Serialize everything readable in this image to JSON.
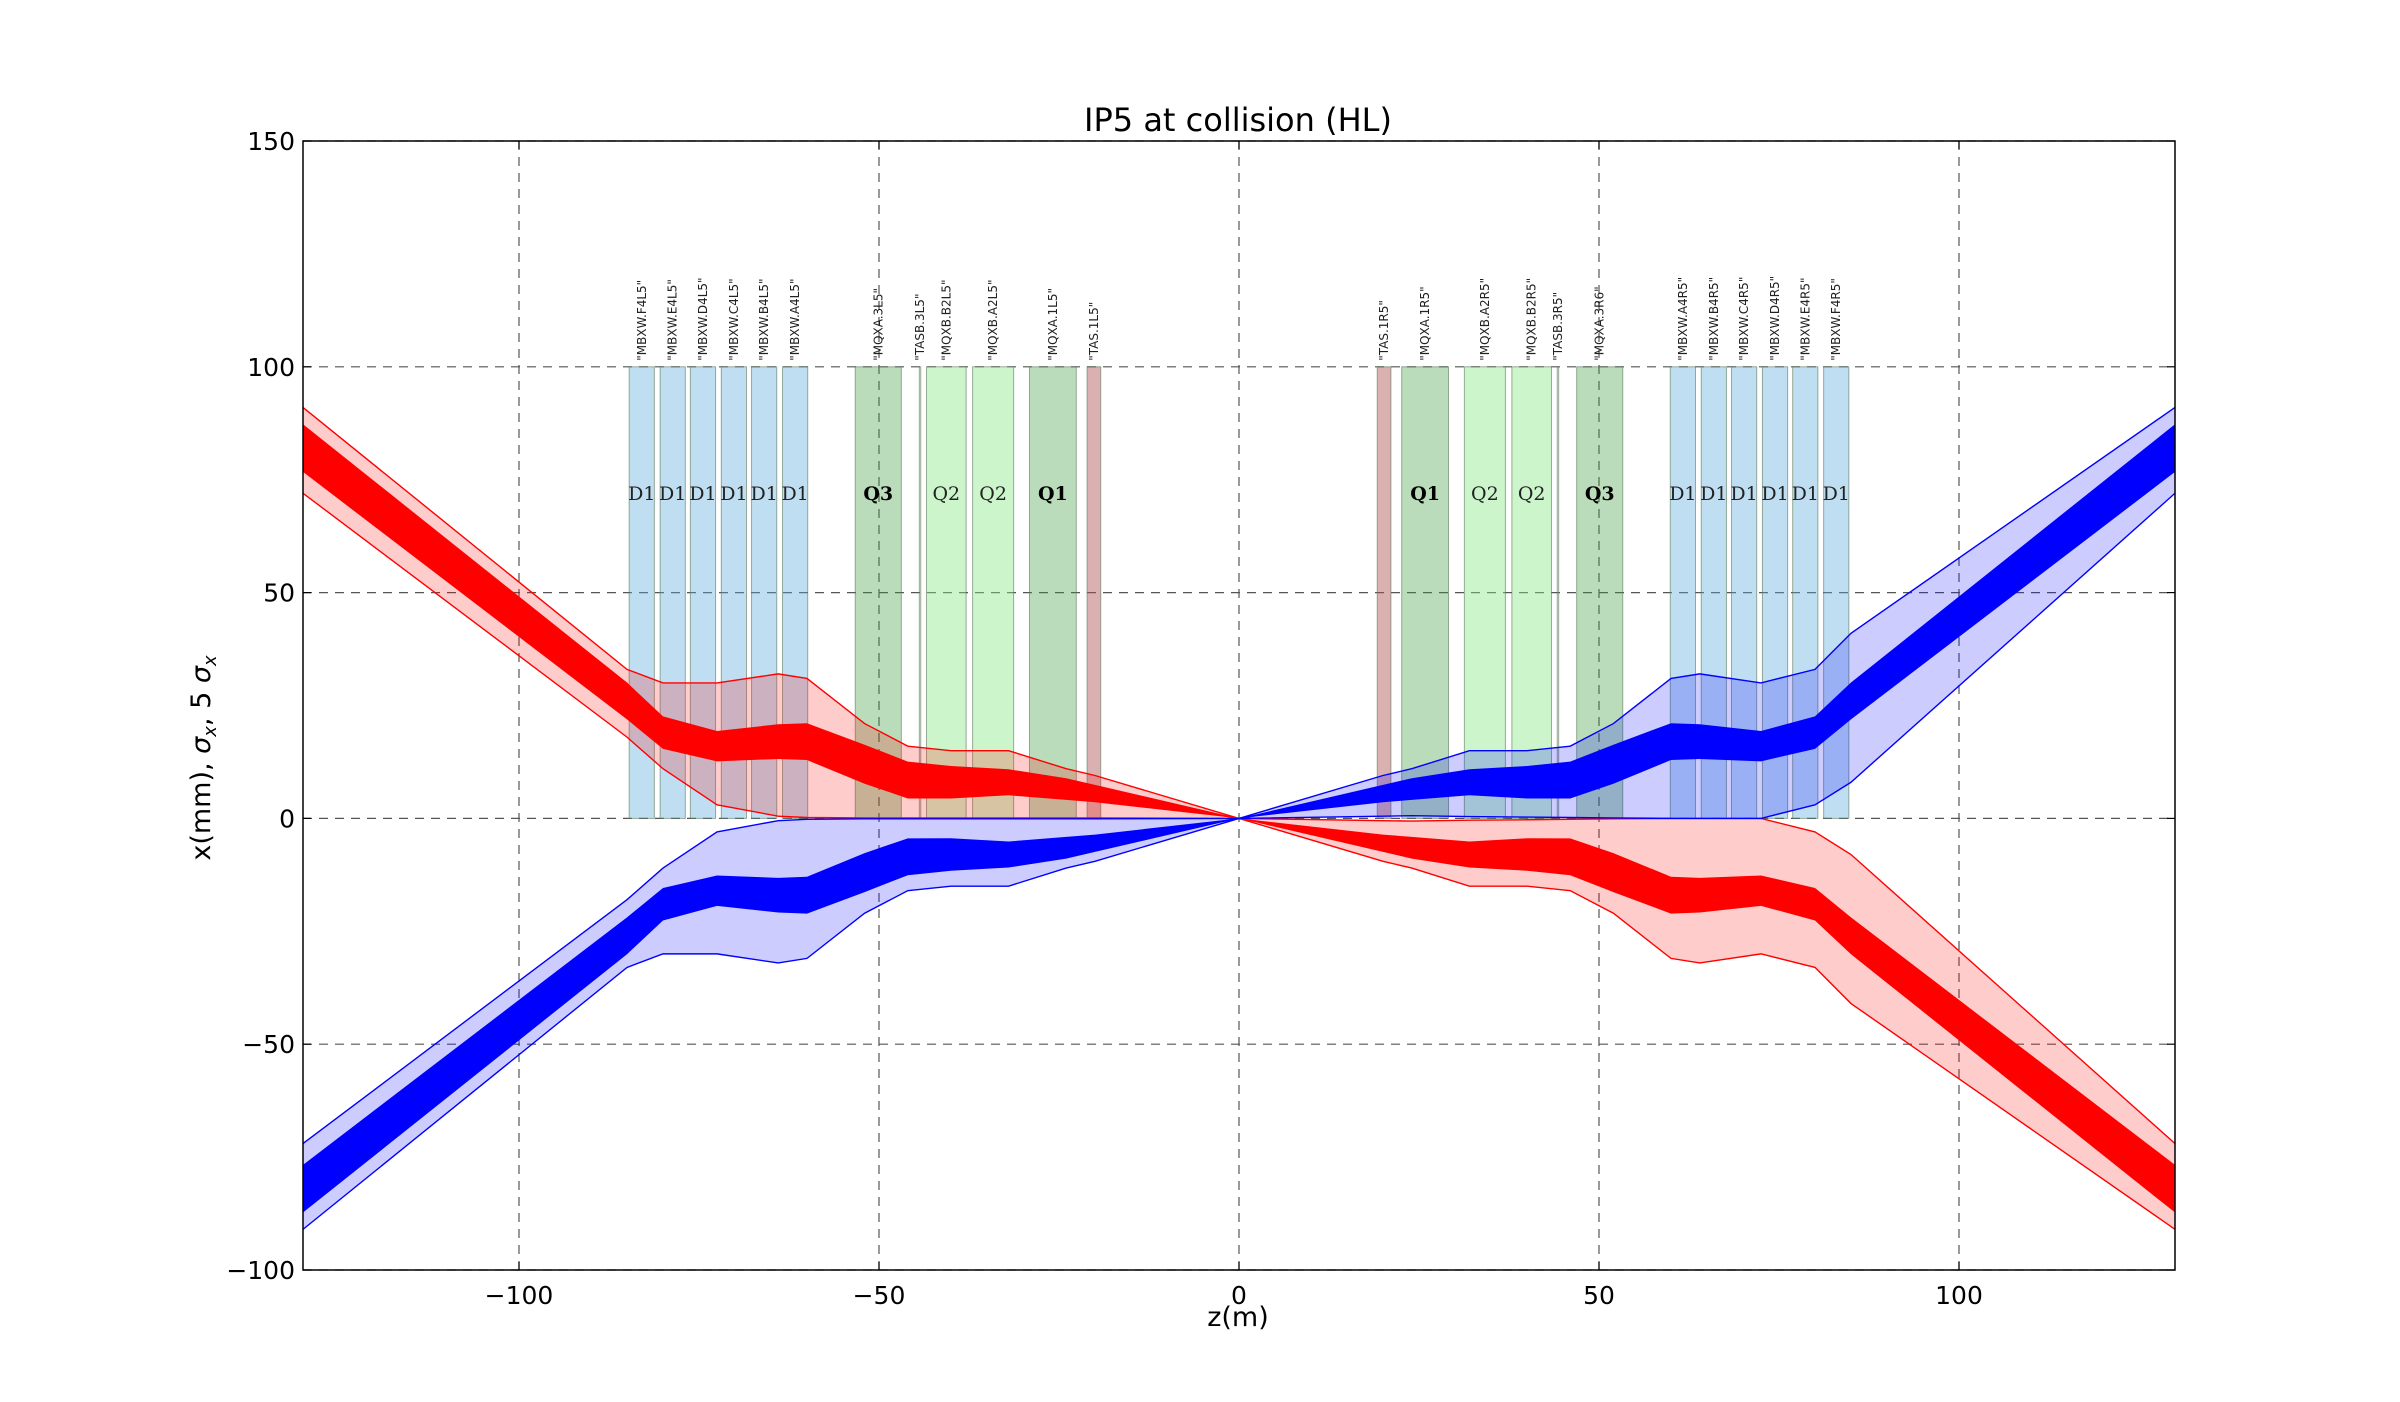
{
  "chart_data": {
    "type": "area",
    "title": "IP5 at collision (HL)",
    "xlabel": "z(m)",
    "ylabel": "x(mm), σ_x, 5 σ_x",
    "xlim": [
      -130,
      130
    ],
    "ylim": [
      -100,
      150
    ],
    "xticks": [
      -100,
      -50,
      0,
      50,
      100
    ],
    "yticks": [
      -100,
      -50,
      0,
      50,
      100,
      150
    ],
    "xtick_labels": [
      "−100",
      "−50",
      "0",
      "50",
      "100"
    ],
    "ytick_labels": [
      "−100",
      "−50",
      "0",
      "50",
      "100",
      "150"
    ],
    "grid": true,
    "colors": {
      "red_line": "#ff0000",
      "red_fill": "#ff0000",
      "blue_line": "#0000ff",
      "blue_fill": "#0000ff",
      "d1": "#5aa9dd",
      "q2": "#86e686",
      "q1q3": "#3a9a3a",
      "tas": "#b05050"
    },
    "series": [
      {
        "color": "red",
        "z": [
          -130,
          -85,
          -80,
          -72.5,
          -64,
          -60,
          -52,
          -46,
          -40,
          -32,
          -24,
          -20,
          0,
          20,
          24,
          32,
          40,
          46,
          52,
          60,
          64,
          72.5,
          80,
          85,
          130
        ],
        "center": [
          82,
          26,
          19,
          16,
          17,
          17,
          12,
          8.5,
          8,
          8,
          6.5,
          5.5,
          0,
          -5.5,
          -6.5,
          -8,
          -8,
          -8.5,
          -12,
          -17,
          -17,
          -16,
          -19,
          -26,
          -82
        ],
        "sigma": [
          2.2,
          1.7,
          1.5,
          1.4,
          1.6,
          1.7,
          1.8,
          1.7,
          1.5,
          1.2,
          1,
          0.8,
          0,
          -0.8,
          -1,
          -1.2,
          -1.5,
          -1.7,
          -1.8,
          -1.7,
          -1.6,
          -1.4,
          -1.5,
          -1.7,
          -2.2
        ],
        "envelope_upper": [
          91,
          33,
          30,
          30,
          32,
          31,
          21,
          16,
          15,
          15,
          11,
          9.5,
          0,
          -0.5,
          -0.6,
          -0.4,
          -0.3,
          -0.2,
          -0.1,
          0,
          0,
          0,
          -3,
          -8,
          -72
        ],
        "envelope_lower": [
          72,
          18,
          11,
          3,
          0.5,
          0.2,
          0.1,
          0.1,
          0.1,
          0.1,
          0.1,
          0.1,
          0,
          -9.5,
          -11,
          -15,
          -15,
          -16,
          -21,
          -31,
          -32,
          -30,
          -33,
          -41,
          -91
        ]
      },
      {
        "color": "blue",
        "z": [
          -130,
          -85,
          -80,
          -72.5,
          -64,
          -60,
          -52,
          -46,
          -40,
          -32,
          -24,
          -20,
          0,
          20,
          24,
          32,
          40,
          46,
          52,
          60,
          64,
          72.5,
          80,
          85,
          130
        ],
        "center": [
          -82,
          -26,
          -19,
          -16,
          -17,
          -17,
          -12,
          -8.5,
          -8,
          -8,
          -6.5,
          -5.5,
          0,
          5.5,
          6.5,
          8,
          8,
          8.5,
          12,
          17,
          17,
          16,
          19,
          26,
          82
        ],
        "sigma": [
          2.2,
          1.7,
          1.5,
          1.4,
          1.6,
          1.7,
          1.8,
          1.7,
          1.5,
          1.2,
          1,
          0.8,
          0,
          0.8,
          1,
          1.2,
          1.5,
          1.7,
          1.8,
          1.7,
          1.6,
          1.4,
          1.5,
          1.7,
          2.2
        ],
        "envelope_upper": [
          -72,
          -18,
          -11,
          -3,
          -0.5,
          -0.2,
          -0.1,
          -0.1,
          -0.1,
          -0.1,
          -0.1,
          -0.1,
          0,
          9.5,
          11,
          15,
          15,
          16,
          21,
          31,
          32,
          30,
          33,
          41,
          91
        ],
        "envelope_lower": [
          -91,
          -33,
          -30,
          -30,
          -32,
          -31,
          -21,
          -16,
          -15,
          -15,
          -11,
          -9.5,
          0,
          0.5,
          0.6,
          0.4,
          0.3,
          0.2,
          0.1,
          0,
          0,
          0,
          3,
          8,
          72
        ]
      }
    ],
    "elements": [
      {
        "name": "\"MBXW.F4L5\"",
        "type": "d1",
        "label": "D1",
        "z_start": -84.7,
        "z_end": -81.2
      },
      {
        "name": "\"MBXW.E4L5\"",
        "type": "d1",
        "label": "D1",
        "z_start": -80.4,
        "z_end": -76.9
      },
      {
        "name": "\"MBXW.D4L5\"",
        "type": "d1",
        "label": "D1",
        "z_start": -76.2,
        "z_end": -72.7
      },
      {
        "name": "\"MBXW.C4L5\"",
        "type": "d1",
        "label": "D1",
        "z_start": -71.9,
        "z_end": -68.4
      },
      {
        "name": "\"MBXW.B4L5\"",
        "type": "d1",
        "label": "D1",
        "z_start": -67.7,
        "z_end": -64.2
      },
      {
        "name": "\"MBXW.A4L5\"",
        "type": "d1",
        "label": "D1",
        "z_start": -63.4,
        "z_end": -59.9
      },
      {
        "name": "\"MQXA.3L5\"",
        "type": "q1q3",
        "label": "Q3",
        "z_start": -53.3,
        "z_end": -46.9
      },
      {
        "name": "\"TASB.3L5\"",
        "type": "tasb",
        "label": "",
        "z_start": -44.4,
        "z_end": -44.2
      },
      {
        "name": "\"MQXB.B2L5\"",
        "type": "q2",
        "label": "Q2",
        "z_start": -43.4,
        "z_end": -37.9
      },
      {
        "name": "\"MQXB.A2L5\"",
        "type": "q2",
        "label": "Q2",
        "z_start": -37.0,
        "z_end": -31.3
      },
      {
        "name": "\"MQXA.1L5\"",
        "type": "q1q3",
        "label": "Q1",
        "z_start": -29.1,
        "z_end": -22.6
      },
      {
        "name": "\"TAS.1L5\"",
        "type": "tas",
        "label": "",
        "z_start": -21.1,
        "z_end": -19.2
      },
      {
        "name": "\"TAS.1R5\"",
        "type": "tas",
        "label": "",
        "z_start": 19.2,
        "z_end": 21.1
      },
      {
        "name": "\"MQXA.1R5\"",
        "type": "q1q3",
        "label": "Q1",
        "z_start": 22.6,
        "z_end": 29.1
      },
      {
        "name": "\"MQXB.A2R5\"",
        "type": "q2",
        "label": "Q2",
        "z_start": 31.3,
        "z_end": 37.0
      },
      {
        "name": "\"MQXB.B2R5\"",
        "type": "q2",
        "label": "Q2",
        "z_start": 37.9,
        "z_end": 43.4
      },
      {
        "name": "\"TASB.3R5\"",
        "type": "tasb",
        "label": "",
        "z_start": 44.2,
        "z_end": 44.4
      },
      {
        "name": "\"MQXA.3R6\"",
        "type": "q1q3",
        "label": "Q3",
        "z_start": 46.9,
        "z_end": 53.3
      },
      {
        "name": "\"MBXW.A4R5\"",
        "type": "d1",
        "label": "D1",
        "z_start": 59.9,
        "z_end": 63.4
      },
      {
        "name": "\"MBXW.B4R5\"",
        "type": "d1",
        "label": "D1",
        "z_start": 64.2,
        "z_end": 67.7
      },
      {
        "name": "\"MBXW.C4R5\"",
        "type": "d1",
        "label": "D1",
        "z_start": 68.4,
        "z_end": 71.9
      },
      {
        "name": "\"MBXW.D4R5\"",
        "type": "d1",
        "label": "D1",
        "z_start": 72.7,
        "z_end": 76.2
      },
      {
        "name": "\"MBXW.E4R5\"",
        "type": "d1",
        "label": "D1",
        "z_start": 76.9,
        "z_end": 80.4
      },
      {
        "name": "\"MBXW.F4R5\"",
        "type": "d1",
        "label": "D1",
        "z_start": 81.2,
        "z_end": 84.7
      }
    ],
    "element_box_y": [
      0,
      100
    ],
    "element_label_y": 72
  }
}
